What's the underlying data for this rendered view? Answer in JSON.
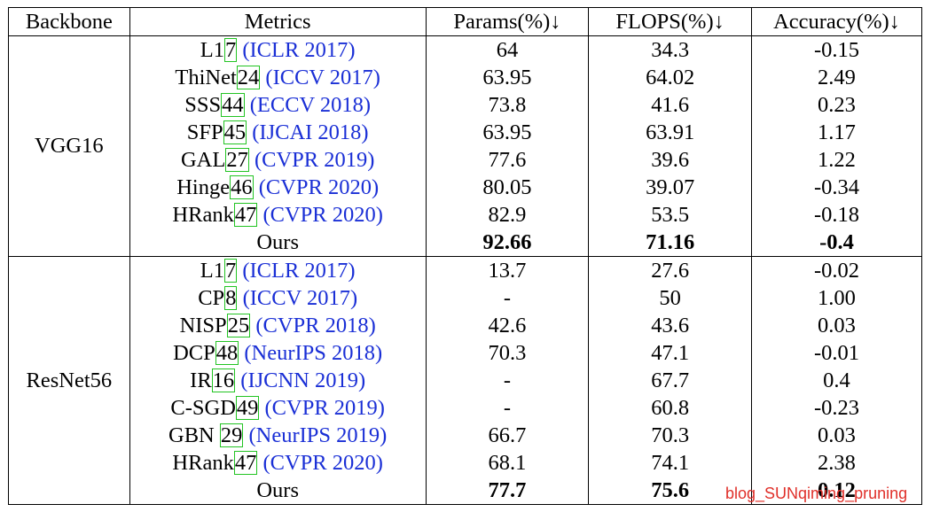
{
  "table": {
    "headers": [
      "Backbone",
      "Metrics",
      "Params(%)↓",
      "FLOPS(%)↓",
      "Accuracy(%)↓"
    ],
    "groups": [
      {
        "backbone": "VGG16",
        "rows": [
          {
            "method": "L1",
            "ref": "7",
            "sep": " ",
            "venue": "(ICLR 2017)",
            "params": "64",
            "flops": "34.3",
            "accuracy": "-0.15"
          },
          {
            "method": "ThiNet",
            "ref": "24",
            "sep": " ",
            "venue": "(ICCV 2017)",
            "params": "63.95",
            "flops": "64.02",
            "accuracy": "2.49"
          },
          {
            "method": "SSS",
            "ref": "44",
            "sep": " ",
            "venue": "(ECCV 2018)",
            "params": "73.8",
            "flops": "41.6",
            "accuracy": "0.23"
          },
          {
            "method": "SFP",
            "ref": "45",
            "sep": " ",
            "venue": "(IJCAI 2018)",
            "params": "63.95",
            "flops": "63.91",
            "accuracy": "1.17"
          },
          {
            "method": "GAL",
            "ref": "27",
            "sep": " ",
            "venue": "(CVPR 2019)",
            "params": "77.6",
            "flops": "39.6",
            "accuracy": "1.22"
          },
          {
            "method": "Hinge",
            "ref": "46",
            "sep": " ",
            "venue": "(CVPR 2020)",
            "params": "80.05",
            "flops": "39.07",
            "accuracy": "-0.34"
          },
          {
            "method": "HRank",
            "ref": "47",
            "sep": " ",
            "venue": "(CVPR 2020)",
            "params": "82.9",
            "flops": "53.5",
            "accuracy": "-0.18"
          }
        ],
        "ours": {
          "label": "Ours",
          "params": "92.66",
          "flops": "71.16",
          "accuracy": "-0.4"
        }
      },
      {
        "backbone": "ResNet56",
        "rows": [
          {
            "method": "L1",
            "ref": "7",
            "sep": " ",
            "venue": "(ICLR 2017)",
            "params": "13.7",
            "flops": "27.6",
            "accuracy": "-0.02"
          },
          {
            "method": "CP",
            "ref": "8",
            "sep": " ",
            "venue": "(ICCV 2017)",
            "params": "-",
            "flops": "50",
            "accuracy": "1.00"
          },
          {
            "method": "NISP",
            "ref": "25",
            "sep": " ",
            "venue": "(CVPR 2018)",
            "params": "42.6",
            "flops": "43.6",
            "accuracy": "0.03"
          },
          {
            "method": "DCP",
            "ref": "48",
            "sep": " ",
            "venue": "(NeurIPS 2018)",
            "params": "70.3",
            "flops": "47.1",
            "accuracy": "-0.01"
          },
          {
            "method": "IR",
            "ref": "16",
            "sep": " ",
            "venue": "(IJCNN 2019)",
            "params": "-",
            "flops": "67.7",
            "accuracy": "0.4"
          },
          {
            "method": "C-SGD",
            "ref": "49",
            "sep": " ",
            "venue": "(CVPR 2019)",
            "params": "-",
            "flops": "60.8",
            "accuracy": "-0.23"
          },
          {
            "method": "GBN ",
            "ref": "29",
            "sep": " ",
            "venue": "(NeurIPS 2019)",
            "params": "66.7",
            "flops": "70.3",
            "accuracy": "0.03"
          },
          {
            "method": "HRank",
            "ref": "47",
            "sep": " ",
            "venue": "(CVPR 2020)",
            "params": "68.1",
            "flops": "74.1",
            "accuracy": "2.38"
          }
        ],
        "ours": {
          "label": "Ours",
          "params": "77.7",
          "flops": "75.6",
          "accuracy": "0.12"
        }
      }
    ]
  },
  "watermark": "blog_SUNqiming_pruning",
  "colors": {
    "venue": "#1a2fd6",
    "ref_box": "#22c422",
    "watermark": "#e0302a"
  }
}
